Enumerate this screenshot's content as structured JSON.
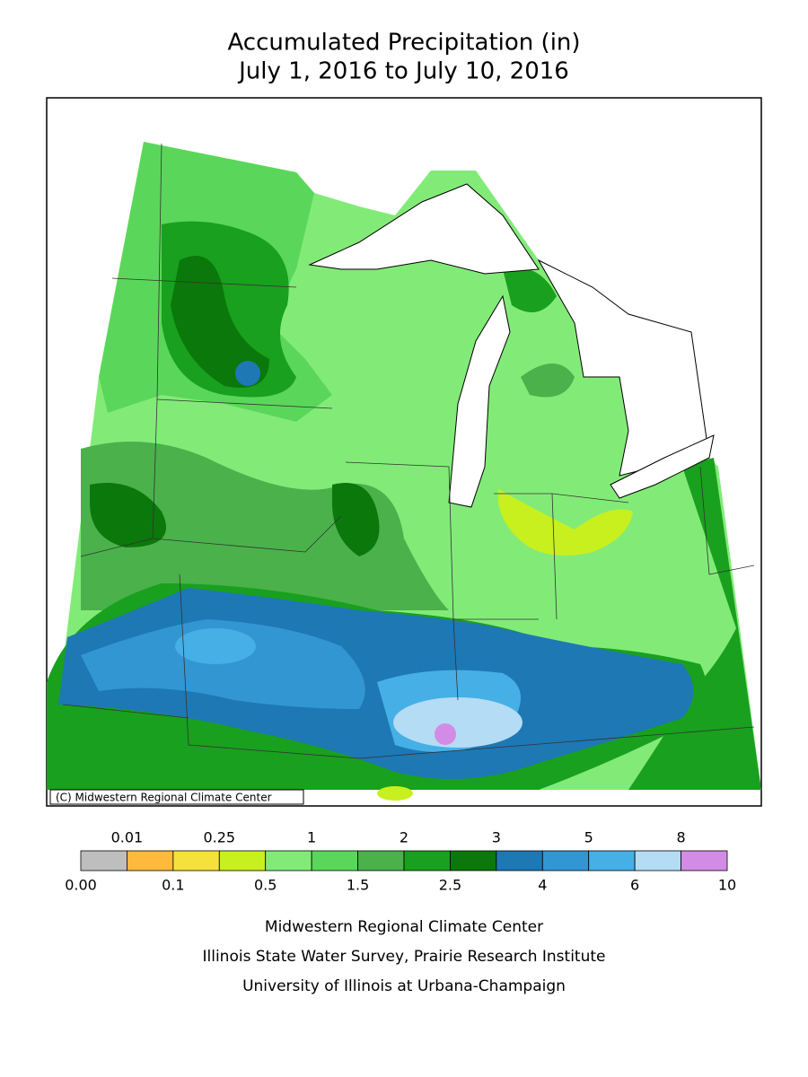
{
  "title": [
    "Accumulated Precipitation (in)",
    "July 1, 2016 to July 10, 2016"
  ],
  "copyright": "(C) Midwestern Regional Climate Center",
  "legend": {
    "colors": [
      "#bebebe",
      "#ffb93c",
      "#f5e13c",
      "#c8f01e",
      "#82eb78",
      "#5ad75a",
      "#4bb14b",
      "#19a01e",
      "#0a780a",
      "#1e78b4",
      "#3296d2",
      "#46afe6",
      "#b4dcf5",
      "#d28ce6"
    ],
    "boundaries": [
      {
        "value": 0,
        "label": "0.00"
      },
      0.01,
      0.1,
      0.25,
      0.5,
      1,
      1.5,
      2,
      2.5,
      3,
      4,
      5,
      6,
      8,
      10
    ]
  },
  "footer": [
    "Midwestern Regional Climate Center",
    "Illinois State Water Survey, Prairie Research Institute",
    "University of Illinois at Urbana-Champaign"
  ]
}
